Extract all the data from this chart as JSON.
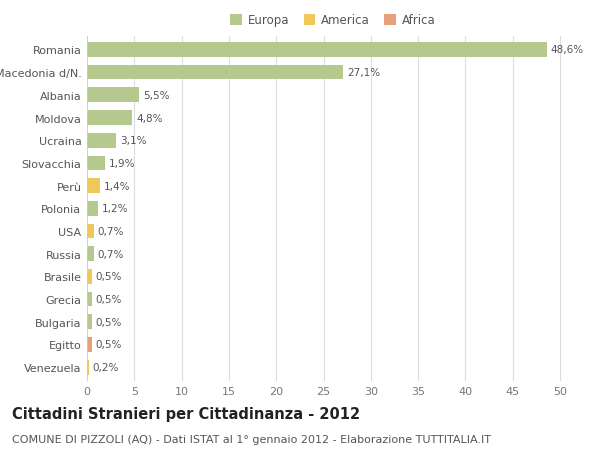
{
  "title": "Cittadini Stranieri per Cittadinanza - 2012",
  "subtitle": "COMUNE DI PIZZOLI (AQ) - Dati ISTAT al 1° gennaio 2012 - Elaborazione TUTTITALIA.IT",
  "categories": [
    "Romania",
    "Macedonia d/N.",
    "Albania",
    "Moldova",
    "Ucraina",
    "Slovacchia",
    "Perù",
    "Polonia",
    "USA",
    "Russia",
    "Brasile",
    "Grecia",
    "Bulgaria",
    "Egitto",
    "Venezuela"
  ],
  "values": [
    48.6,
    27.1,
    5.5,
    4.8,
    3.1,
    1.9,
    1.4,
    1.2,
    0.7,
    0.7,
    0.5,
    0.5,
    0.5,
    0.5,
    0.2
  ],
  "labels": [
    "48,6%",
    "27,1%",
    "5,5%",
    "4,8%",
    "3,1%",
    "1,9%",
    "1,4%",
    "1,2%",
    "0,7%",
    "0,7%",
    "0,5%",
    "0,5%",
    "0,5%",
    "0,5%",
    "0,2%"
  ],
  "continents": [
    "Europa",
    "Europa",
    "Europa",
    "Europa",
    "Europa",
    "Europa",
    "America",
    "Europa",
    "America",
    "Europa",
    "America",
    "Europa",
    "Europa",
    "Africa",
    "America"
  ],
  "colors": {
    "Europa": "#b5c98e",
    "America": "#f0c85a",
    "Africa": "#e8a07a"
  },
  "xlim": [
    0,
    52
  ],
  "xticks": [
    0,
    5,
    10,
    15,
    20,
    25,
    30,
    35,
    40,
    45,
    50
  ],
  "background_color": "#ffffff",
  "plot_bg_color": "#ffffff",
  "grid_color": "#dddddd",
  "bar_height": 0.65,
  "title_fontsize": 10.5,
  "subtitle_fontsize": 8,
  "label_fontsize": 7.5,
  "tick_fontsize": 8,
  "legend_fontsize": 8.5,
  "label_color": "#555555",
  "tick_color": "#777777"
}
